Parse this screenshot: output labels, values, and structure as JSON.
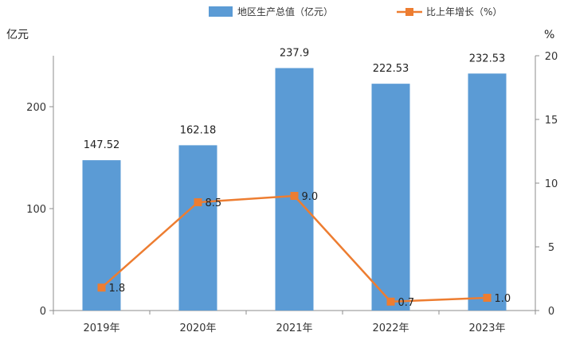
{
  "chart_data": {
    "type": "bar",
    "categories": [
      "2019年",
      "2020年",
      "2021年",
      "2022年",
      "2023年"
    ],
    "series": [
      {
        "name": "地区生产总值（亿元）",
        "type": "bar",
        "axis": "left",
        "values": [
          147.52,
          162.18,
          237.9,
          222.53,
          232.53
        ],
        "labels": [
          "147.52",
          "162.18",
          "237.9",
          "222.53",
          "232.53"
        ],
        "color": "#5B9BD5"
      },
      {
        "name": "比上年增长（%）",
        "type": "line",
        "axis": "right",
        "values": [
          1.8,
          8.5,
          9.0,
          0.7,
          1.0
        ],
        "labels": [
          "1.8",
          "8.5",
          "9.0",
          "0.7",
          "1.0"
        ],
        "color": "#ED7D31"
      }
    ],
    "y_left": {
      "label": "亿元",
      "ylim": [
        0,
        250
      ],
      "ticks": [
        "0",
        "100",
        "200"
      ],
      "tick_values": [
        0,
        100,
        200
      ]
    },
    "y_right": {
      "label": "%",
      "ylim": [
        0,
        20
      ],
      "ticks": [
        "0",
        "5",
        "10",
        "15",
        "20"
      ],
      "tick_values": [
        0,
        5,
        10,
        15,
        20
      ]
    },
    "grid": false,
    "legend": "top"
  }
}
